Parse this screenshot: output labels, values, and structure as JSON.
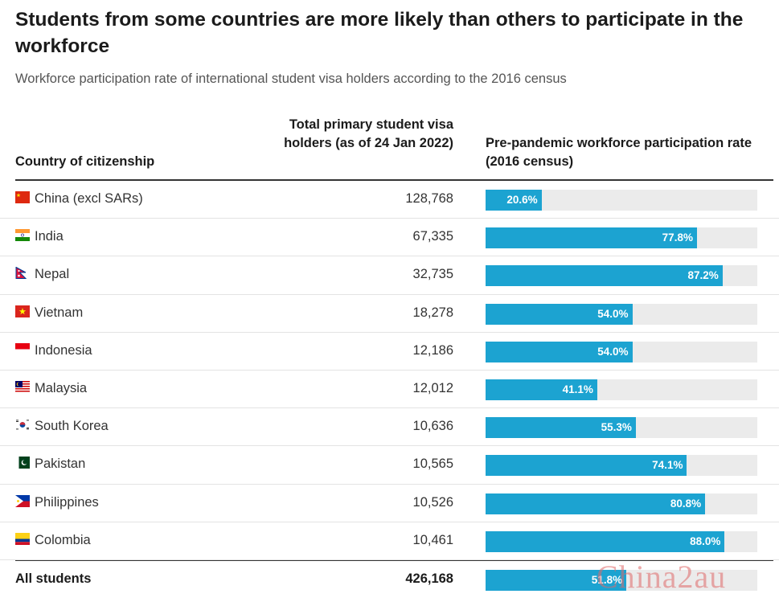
{
  "title": "Students from some countries are more likely than others to participate in the workforce",
  "subtitle": "Workforce participation rate of international student visa holders according to the 2016 census",
  "columns": {
    "country": "Country of citizenship",
    "visa": "Total primary student visa holders (as of 24 Jan 2022)",
    "rate": "Pre-pandemic workforce participation rate (2016 census)"
  },
  "colors": {
    "bar": "#1ca3d1",
    "track": "#ebebeb"
  },
  "chart_data": {
    "type": "bar",
    "orientation": "horizontal",
    "categories": [
      "China (excl SARs)",
      "India",
      "Nepal",
      "Vietnam",
      "Indonesia",
      "Malaysia",
      "South Korea",
      "Pakistan",
      "Philippines",
      "Colombia"
    ],
    "rows": [
      {
        "country": "China (excl SARs)",
        "flag": "china-flag-icon",
        "visa": "128,768",
        "rate": 20.6,
        "rate_label": "20.6%"
      },
      {
        "country": "India",
        "flag": "india-flag-icon",
        "visa": "67,335",
        "rate": 77.8,
        "rate_label": "77.8%"
      },
      {
        "country": "Nepal",
        "flag": "nepal-flag-icon",
        "visa": "32,735",
        "rate": 87.2,
        "rate_label": "87.2%"
      },
      {
        "country": "Vietnam",
        "flag": "vietnam-flag-icon",
        "visa": "18,278",
        "rate": 54.0,
        "rate_label": "54.0%"
      },
      {
        "country": "Indonesia",
        "flag": "indonesia-flag-icon",
        "visa": "12,186",
        "rate": 54.0,
        "rate_label": "54.0%"
      },
      {
        "country": "Malaysia",
        "flag": "malaysia-flag-icon",
        "visa": "12,012",
        "rate": 41.1,
        "rate_label": "41.1%"
      },
      {
        "country": "South Korea",
        "flag": "south-korea-flag-icon",
        "visa": "10,636",
        "rate": 55.3,
        "rate_label": "55.3%"
      },
      {
        "country": "Pakistan",
        "flag": "pakistan-flag-icon",
        "visa": "10,565",
        "rate": 74.1,
        "rate_label": "74.1%"
      },
      {
        "country": "Philippines",
        "flag": "philippines-flag-icon",
        "visa": "10,526",
        "rate": 80.8,
        "rate_label": "80.8%"
      },
      {
        "country": "Colombia",
        "flag": "colombia-flag-icon",
        "visa": "10,461",
        "rate": 88.0,
        "rate_label": "88.0%"
      }
    ],
    "total": {
      "country": "All students",
      "visa": "426,168",
      "rate": 51.8,
      "rate_label": "51.8%"
    },
    "xlim": [
      0,
      100
    ]
  },
  "watermark": "China2au"
}
